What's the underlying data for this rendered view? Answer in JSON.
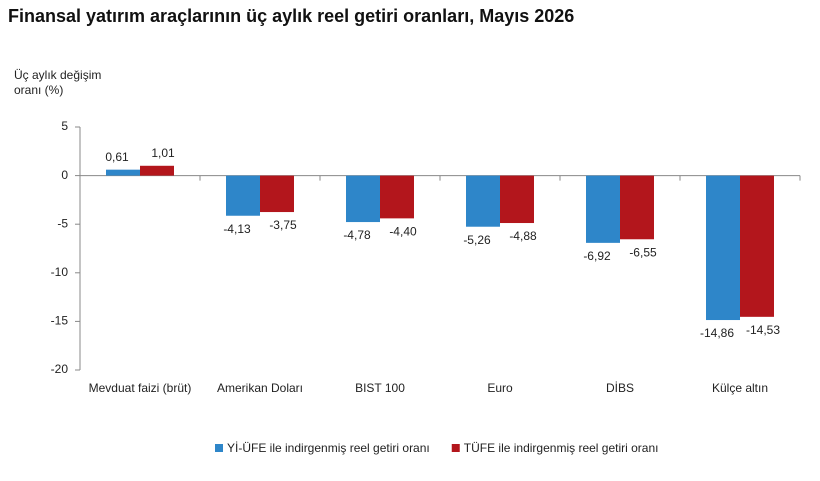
{
  "chart_data": {
    "type": "bar",
    "title": "Finansal yatırım araçlarının üç aylık reel getiri oranları, Mayıs 2026",
    "y_label": "Üç aylık değişim oranı (%)",
    "categories": [
      "Mevduat faizi (brüt)",
      "Amerikan Doları",
      "BIST 100",
      "Euro",
      "DİBS",
      "Külçe altın"
    ],
    "series": [
      {
        "name": "Yİ-ÜFE ile indirgenmiş reel getiri oranı",
        "color": "#2e86c9",
        "values": [
          0.61,
          -4.13,
          -4.78,
          -5.26,
          -6.92,
          -14.86
        ],
        "value_labels": [
          "0,61",
          "-4,13",
          "-4,78",
          "-5,26",
          "-6,92",
          "-14,86"
        ]
      },
      {
        "name": "TÜFE ile indirgenmiş reel getiri oranı",
        "color": "#b3161c",
        "values": [
          1.01,
          -3.75,
          -4.4,
          -4.88,
          -6.55,
          -14.53
        ],
        "value_labels": [
          "1,01",
          "-3,75",
          "-4,40",
          "-4,88",
          "-6,55",
          "-14,53"
        ]
      }
    ],
    "ylim": [
      -20,
      5
    ],
    "yticks": [
      5,
      0,
      -5,
      -10,
      -15,
      -20
    ],
    "legend": "bottom"
  }
}
